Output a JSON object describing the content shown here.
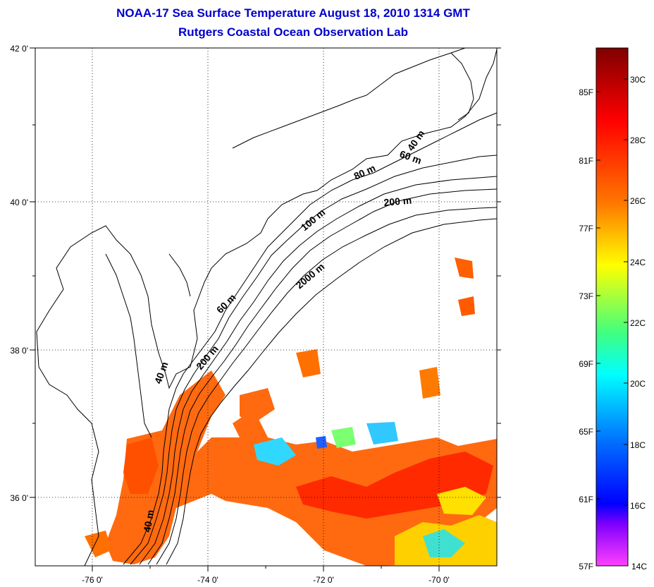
{
  "title": {
    "line1": "NOAA-17 Sea Surface Temperature August 18, 2010 1314 GMT",
    "line2": "Rutgers Coastal Ocean Observation Lab"
  },
  "map": {
    "lat_labels": [
      "42 0'",
      "40 0'",
      "38 0'",
      "36 0'"
    ],
    "lon_labels": [
      "-76 0'",
      "-74 0'",
      "-72 0'",
      "-70 0'"
    ],
    "lat_range": [
      35,
      42
    ],
    "lon_range": [
      -77,
      -69
    ],
    "contour_labels": [
      "40 m",
      "60 m",
      "80 m",
      "200 m",
      "100 m",
      "2000 m",
      "60 m",
      "200 m",
      "40 m",
      "40 m"
    ]
  },
  "colorbar": {
    "f_labels": [
      "85F",
      "81F",
      "77F",
      "73F",
      "69F",
      "65F",
      "61F",
      "57F"
    ],
    "c_labels": [
      "30C",
      "28C",
      "26C",
      "24C",
      "22C",
      "20C",
      "18C",
      "16C",
      "14C"
    ],
    "colors": [
      "#800000",
      "#ff0000",
      "#ff7f00",
      "#ffff00",
      "#00ff80",
      "#00ffff",
      "#0000ff",
      "#8000ff",
      "#ff00ff"
    ]
  }
}
